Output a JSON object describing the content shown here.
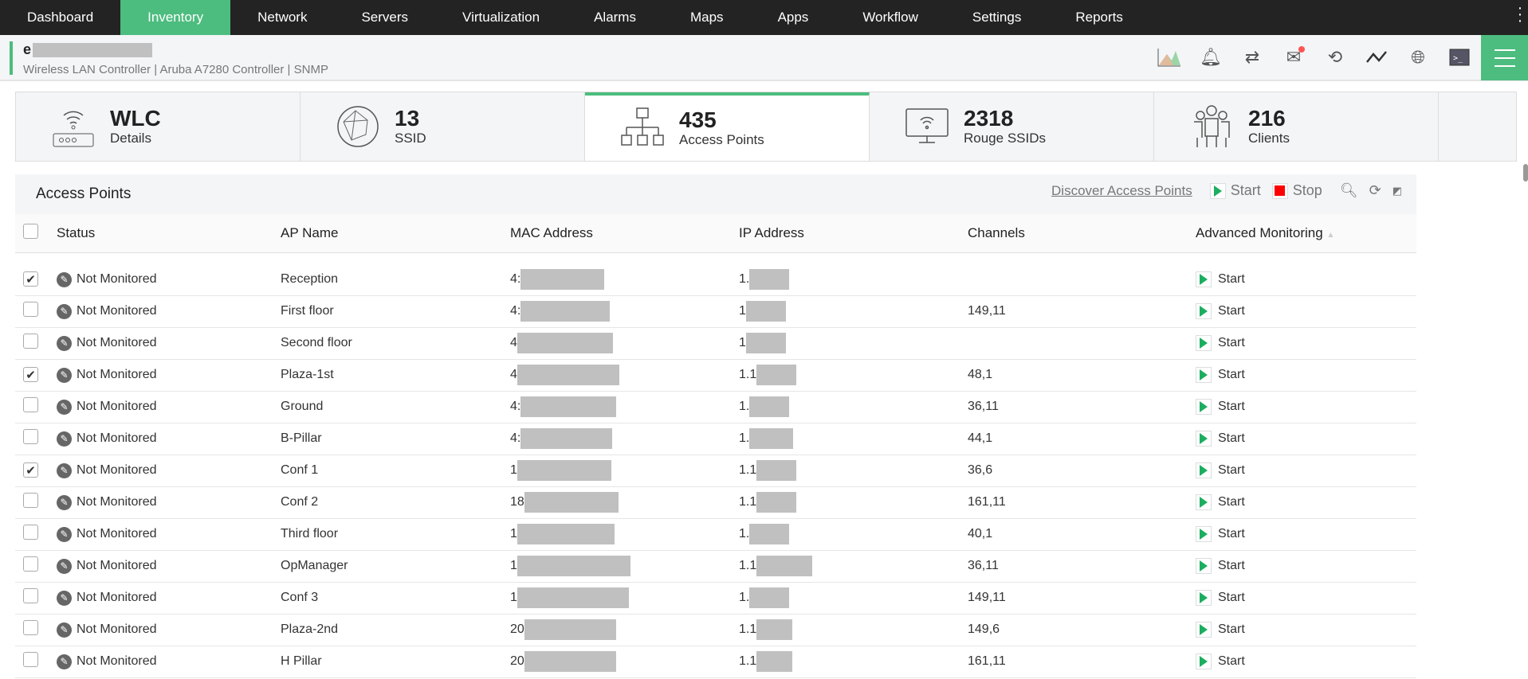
{
  "nav": [
    "Dashboard",
    "Inventory",
    "Network",
    "Servers",
    "Virtualization",
    "Alarms",
    "Maps",
    "Apps",
    "Workflow",
    "Settings",
    "Reports"
  ],
  "device": {
    "name_prefix": "e",
    "subtitle": "Wireless LAN Controller | Aruba A7280 Controller  | SNMP"
  },
  "cards": [
    {
      "value": "WLC",
      "label": "Details"
    },
    {
      "value": "13",
      "label": "SSID"
    },
    {
      "value": "435",
      "label": "Access Points"
    },
    {
      "value": "2318",
      "label": "Rouge SSIDs"
    },
    {
      "value": "216",
      "label": "Clients"
    }
  ],
  "panel": {
    "title": "Access Points",
    "discover": "Discover Access Points",
    "start": "Start",
    "stop": "Stop"
  },
  "columns": [
    "Status",
    "AP Name",
    "MAC Address",
    "IP Address",
    "Channels",
    "Advanced Monitoring"
  ],
  "rows": [
    {
      "checked": true,
      "status": "Not Monitored",
      "name": "Reception",
      "mac": "4:",
      "ip": "1.",
      "channels": "",
      "adv": "Start"
    },
    {
      "checked": false,
      "status": "Not Monitored",
      "name": "First floor",
      "mac": "4:",
      "ip": "1",
      "channels": "149,11",
      "adv": "Start"
    },
    {
      "checked": false,
      "status": "Not Monitored",
      "name": "Second floor",
      "mac": "4",
      "ip": "1",
      "channels": "",
      "adv": "Start"
    },
    {
      "checked": true,
      "status": "Not Monitored",
      "name": "Plaza-1st",
      "mac": "4",
      "ip": "1.1",
      "channels": "48,1",
      "adv": "Start"
    },
    {
      "checked": false,
      "status": "Not Monitored",
      "name": "Ground",
      "mac": "4:",
      "ip": "1.",
      "channels": "36,11",
      "adv": "Start"
    },
    {
      "checked": false,
      "status": "Not Monitored",
      "name": "B-Pillar",
      "mac": "4:",
      "ip": "1.",
      "channels": "44,1",
      "adv": "Start"
    },
    {
      "checked": true,
      "status": "Not Monitored",
      "name": "Conf 1",
      "mac": "1",
      "ip": "1.1",
      "channels": "36,6",
      "adv": "Start"
    },
    {
      "checked": false,
      "status": "Not Monitored",
      "name": "Conf 2",
      "mac": "18",
      "ip": "1.1",
      "channels": "161,11",
      "adv": "Start"
    },
    {
      "checked": false,
      "status": "Not Monitored",
      "name": "Third floor",
      "mac": "1",
      "ip": "1.",
      "channels": "40,1",
      "adv": "Start"
    },
    {
      "checked": false,
      "status": "Not Monitored",
      "name": "OpManager",
      "mac": "1",
      "ip": "1.1",
      "channels": "36,11",
      "adv": "Start"
    },
    {
      "checked": false,
      "status": "Not Monitored",
      "name": "Conf 3",
      "mac": "1",
      "ip": "1.",
      "channels": "149,11",
      "adv": "Start"
    },
    {
      "checked": false,
      "status": "Not Monitored",
      "name": "Plaza-2nd",
      "mac": "20",
      "ip": "1.1",
      "channels": "149,6",
      "adv": "Start"
    },
    {
      "checked": false,
      "status": "Not Monitored",
      "name": "H Pillar",
      "mac": "20",
      "ip": "1.1",
      "channels": "161,11",
      "adv": "Start"
    }
  ]
}
